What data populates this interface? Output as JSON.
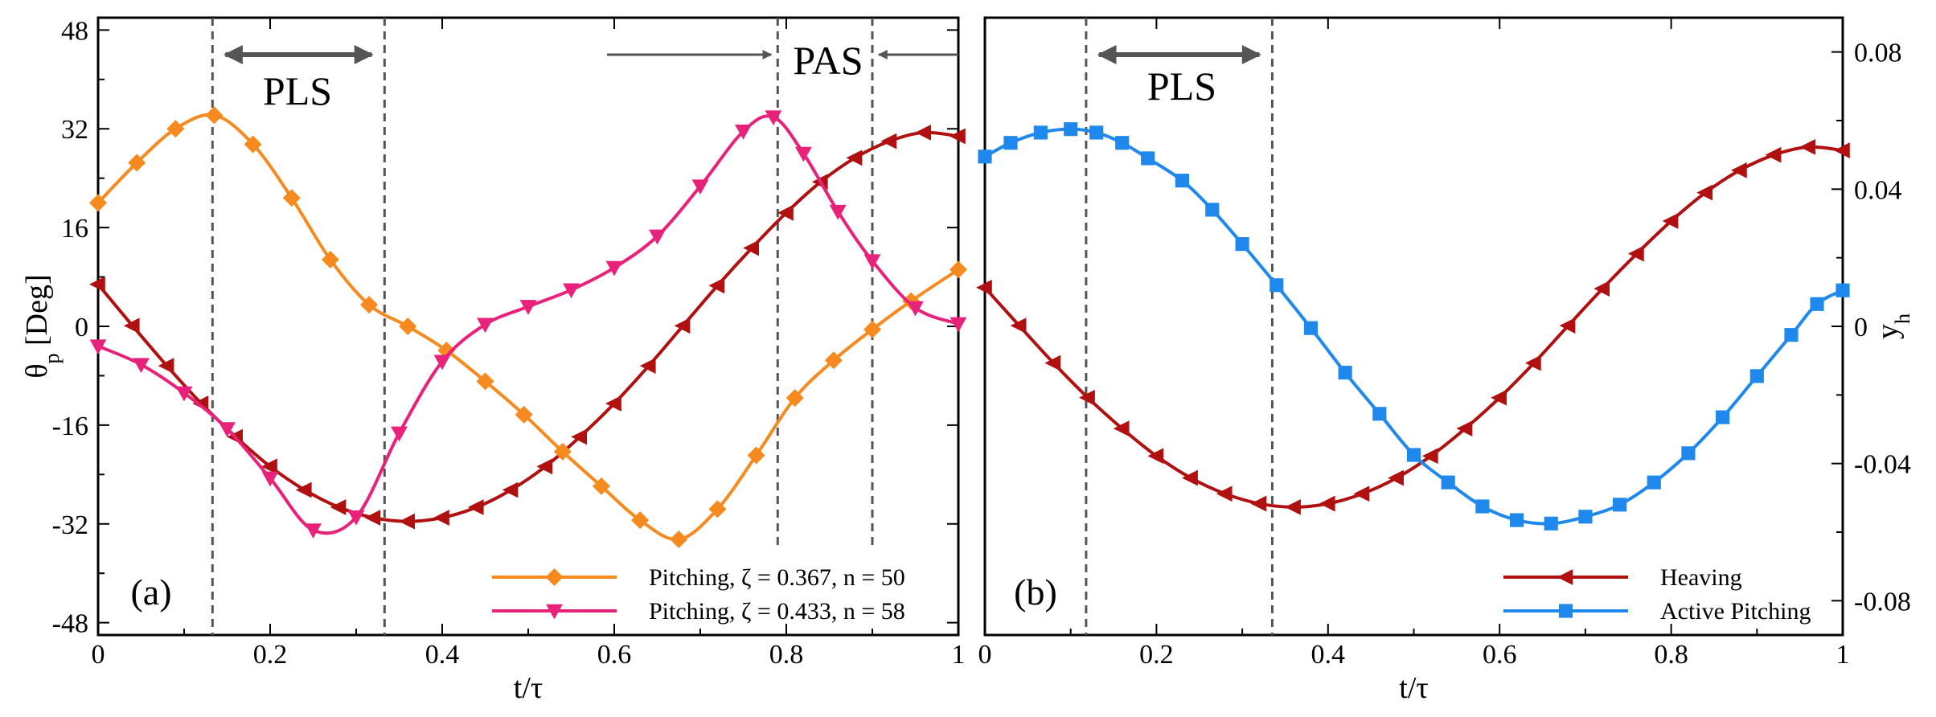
{
  "chart_data": [
    {
      "type": "line",
      "panel_label": "(a)",
      "xlabel": "t/τ",
      "ylabel": "θ",
      "ylabel_sub": "p",
      "ylabel_unit": " [Deg]",
      "xlim": [
        0,
        1
      ],
      "ylim": [
        -50,
        50
      ],
      "xticks": [
        0,
        0.2,
        0.4,
        0.6,
        0.8,
        1
      ],
      "xtick_labels": [
        "0",
        "0.2",
        "0.4",
        "0.6",
        "0.8",
        "1"
      ],
      "yticks": [
        -48,
        -32,
        -16,
        0,
        16,
        32,
        48
      ],
      "ytick_labels": [
        "-48",
        "-32",
        "-16",
        "0",
        "16",
        "32",
        "48"
      ],
      "vlines": [
        0.133,
        0.333,
        0.79,
        0.9
      ],
      "annotations": [
        {
          "text": "PLS",
          "type": "double-arrow",
          "x1": 0.133,
          "x2": 0.333
        },
        {
          "text": "PAS",
          "type": "converging-arrows",
          "x1": 0.79,
          "x2": 0.9
        }
      ],
      "series": [
        {
          "name": "Heaving",
          "in_legend": false,
          "color": "#b01010",
          "marker": "triangle-left",
          "x": [
            0,
            0.04,
            0.08,
            0.12,
            0.16,
            0.2,
            0.24,
            0.28,
            0.32,
            0.36,
            0.4,
            0.44,
            0.48,
            0.52,
            0.56,
            0.6,
            0.64,
            0.68,
            0.72,
            0.76,
            0.8,
            0.84,
            0.88,
            0.92,
            0.96,
            1.0
          ],
          "y": [
            6.8,
            0.1,
            -6.4,
            -12.5,
            -17.9,
            -22.7,
            -26.5,
            -29.3,
            -31.0,
            -31.6,
            -31.0,
            -29.3,
            -26.5,
            -22.7,
            -17.9,
            -12.5,
            -6.4,
            0.1,
            6.6,
            12.7,
            18.4,
            23.4,
            27.3,
            30.0,
            31.4,
            30.8
          ]
        },
        {
          "name": "Pitching, ζ = 0.367, n = 50",
          "in_legend": true,
          "color": "#f68a1e",
          "marker": "diamond",
          "x": [
            0,
            0.045,
            0.09,
            0.135,
            0.18,
            0.225,
            0.27,
            0.315,
            0.36,
            0.405,
            0.45,
            0.495,
            0.54,
            0.585,
            0.63,
            0.675,
            0.72,
            0.765,
            0.81,
            0.855,
            0.9,
            0.945,
            1.0
          ],
          "y": [
            20,
            26.5,
            32,
            34.2,
            29.5,
            20.8,
            10.8,
            3.5,
            0,
            -3.9,
            -8.9,
            -14.3,
            -20.3,
            -25.9,
            -31.4,
            -34.5,
            -29.6,
            -20.9,
            -11.6,
            -5.5,
            -0.5,
            4.1,
            9.2
          ]
        },
        {
          "name": "Pitching, ζ = 0.433, n = 58",
          "in_legend": true,
          "color": "#e8217a",
          "marker": "triangle-down",
          "x": [
            0,
            0.05,
            0.1,
            0.15,
            0.2,
            0.25,
            0.3,
            0.35,
            0.4,
            0.45,
            0.5,
            0.55,
            0.6,
            0.65,
            0.7,
            0.75,
            0.785,
            0.82,
            0.86,
            0.9,
            0.95,
            1.0
          ],
          "y": [
            -3.2,
            -6.2,
            -10.8,
            -16.6,
            -24.6,
            -33.0,
            -30.9,
            -17.3,
            -5.7,
            0.3,
            3.2,
            5.9,
            9.5,
            14.6,
            22.7,
            31.6,
            33.9,
            28.0,
            18.6,
            10.6,
            3.0,
            0.4
          ]
        }
      ]
    },
    {
      "type": "line",
      "panel_label": "(b)",
      "xlabel": "t/τ",
      "ylabel": "y",
      "ylabel_sub": "h",
      "xlim": [
        0,
        1
      ],
      "ylim": [
        -0.09,
        0.09
      ],
      "xticks": [
        0,
        0.2,
        0.4,
        0.6,
        0.8,
        1
      ],
      "xtick_labels": [
        "0",
        "0.2",
        "0.4",
        "0.6",
        "0.8",
        "1"
      ],
      "yticks": [
        -0.08,
        -0.04,
        0,
        0.04,
        0.08
      ],
      "ytick_labels": [
        "-0.08",
        "-0.04",
        "0",
        "0.04",
        "0.08"
      ],
      "vlines": [
        0.118,
        0.335
      ],
      "annotations": [
        {
          "text": "PLS",
          "type": "double-arrow",
          "x1": 0.118,
          "x2": 0.335
        }
      ],
      "series": [
        {
          "name": "Heaving",
          "in_legend": true,
          "color": "#b01010",
          "marker": "triangle-left",
          "x": [
            0,
            0.04,
            0.08,
            0.12,
            0.16,
            0.2,
            0.24,
            0.28,
            0.32,
            0.36,
            0.4,
            0.44,
            0.48,
            0.52,
            0.56,
            0.6,
            0.64,
            0.68,
            0.72,
            0.76,
            0.8,
            0.84,
            0.88,
            0.92,
            0.96,
            1.0
          ],
          "y": [
            0.0113,
            0.0002,
            -0.0107,
            -0.0208,
            -0.0298,
            -0.0378,
            -0.0442,
            -0.0488,
            -0.0517,
            -0.0527,
            -0.0517,
            -0.0488,
            -0.0442,
            -0.0378,
            -0.0298,
            -0.0208,
            -0.0107,
            0.0002,
            0.011,
            0.0212,
            0.0307,
            0.039,
            0.0455,
            0.05,
            0.0523,
            0.0513
          ]
        },
        {
          "name": "Active Pitching",
          "in_legend": true,
          "color": "#1e88ec",
          "marker": "square",
          "x": [
            0,
            0.03,
            0.065,
            0.1,
            0.13,
            0.16,
            0.19,
            0.23,
            0.265,
            0.3,
            0.34,
            0.38,
            0.42,
            0.46,
            0.5,
            0.54,
            0.58,
            0.62,
            0.66,
            0.7,
            0.74,
            0.78,
            0.82,
            0.86,
            0.9,
            0.94,
            0.97,
            1.0
          ],
          "y": [
            0.0495,
            0.0535,
            0.0565,
            0.0575,
            0.0565,
            0.0535,
            0.049,
            0.0425,
            0.034,
            0.024,
            0.012,
            -0.0005,
            -0.0135,
            -0.0255,
            -0.0375,
            -0.0455,
            -0.0525,
            -0.0565,
            -0.0575,
            -0.0555,
            -0.052,
            -0.0455,
            -0.037,
            -0.0265,
            -0.0145,
            -0.0025,
            0.0065,
            0.0105
          ]
        }
      ]
    }
  ]
}
